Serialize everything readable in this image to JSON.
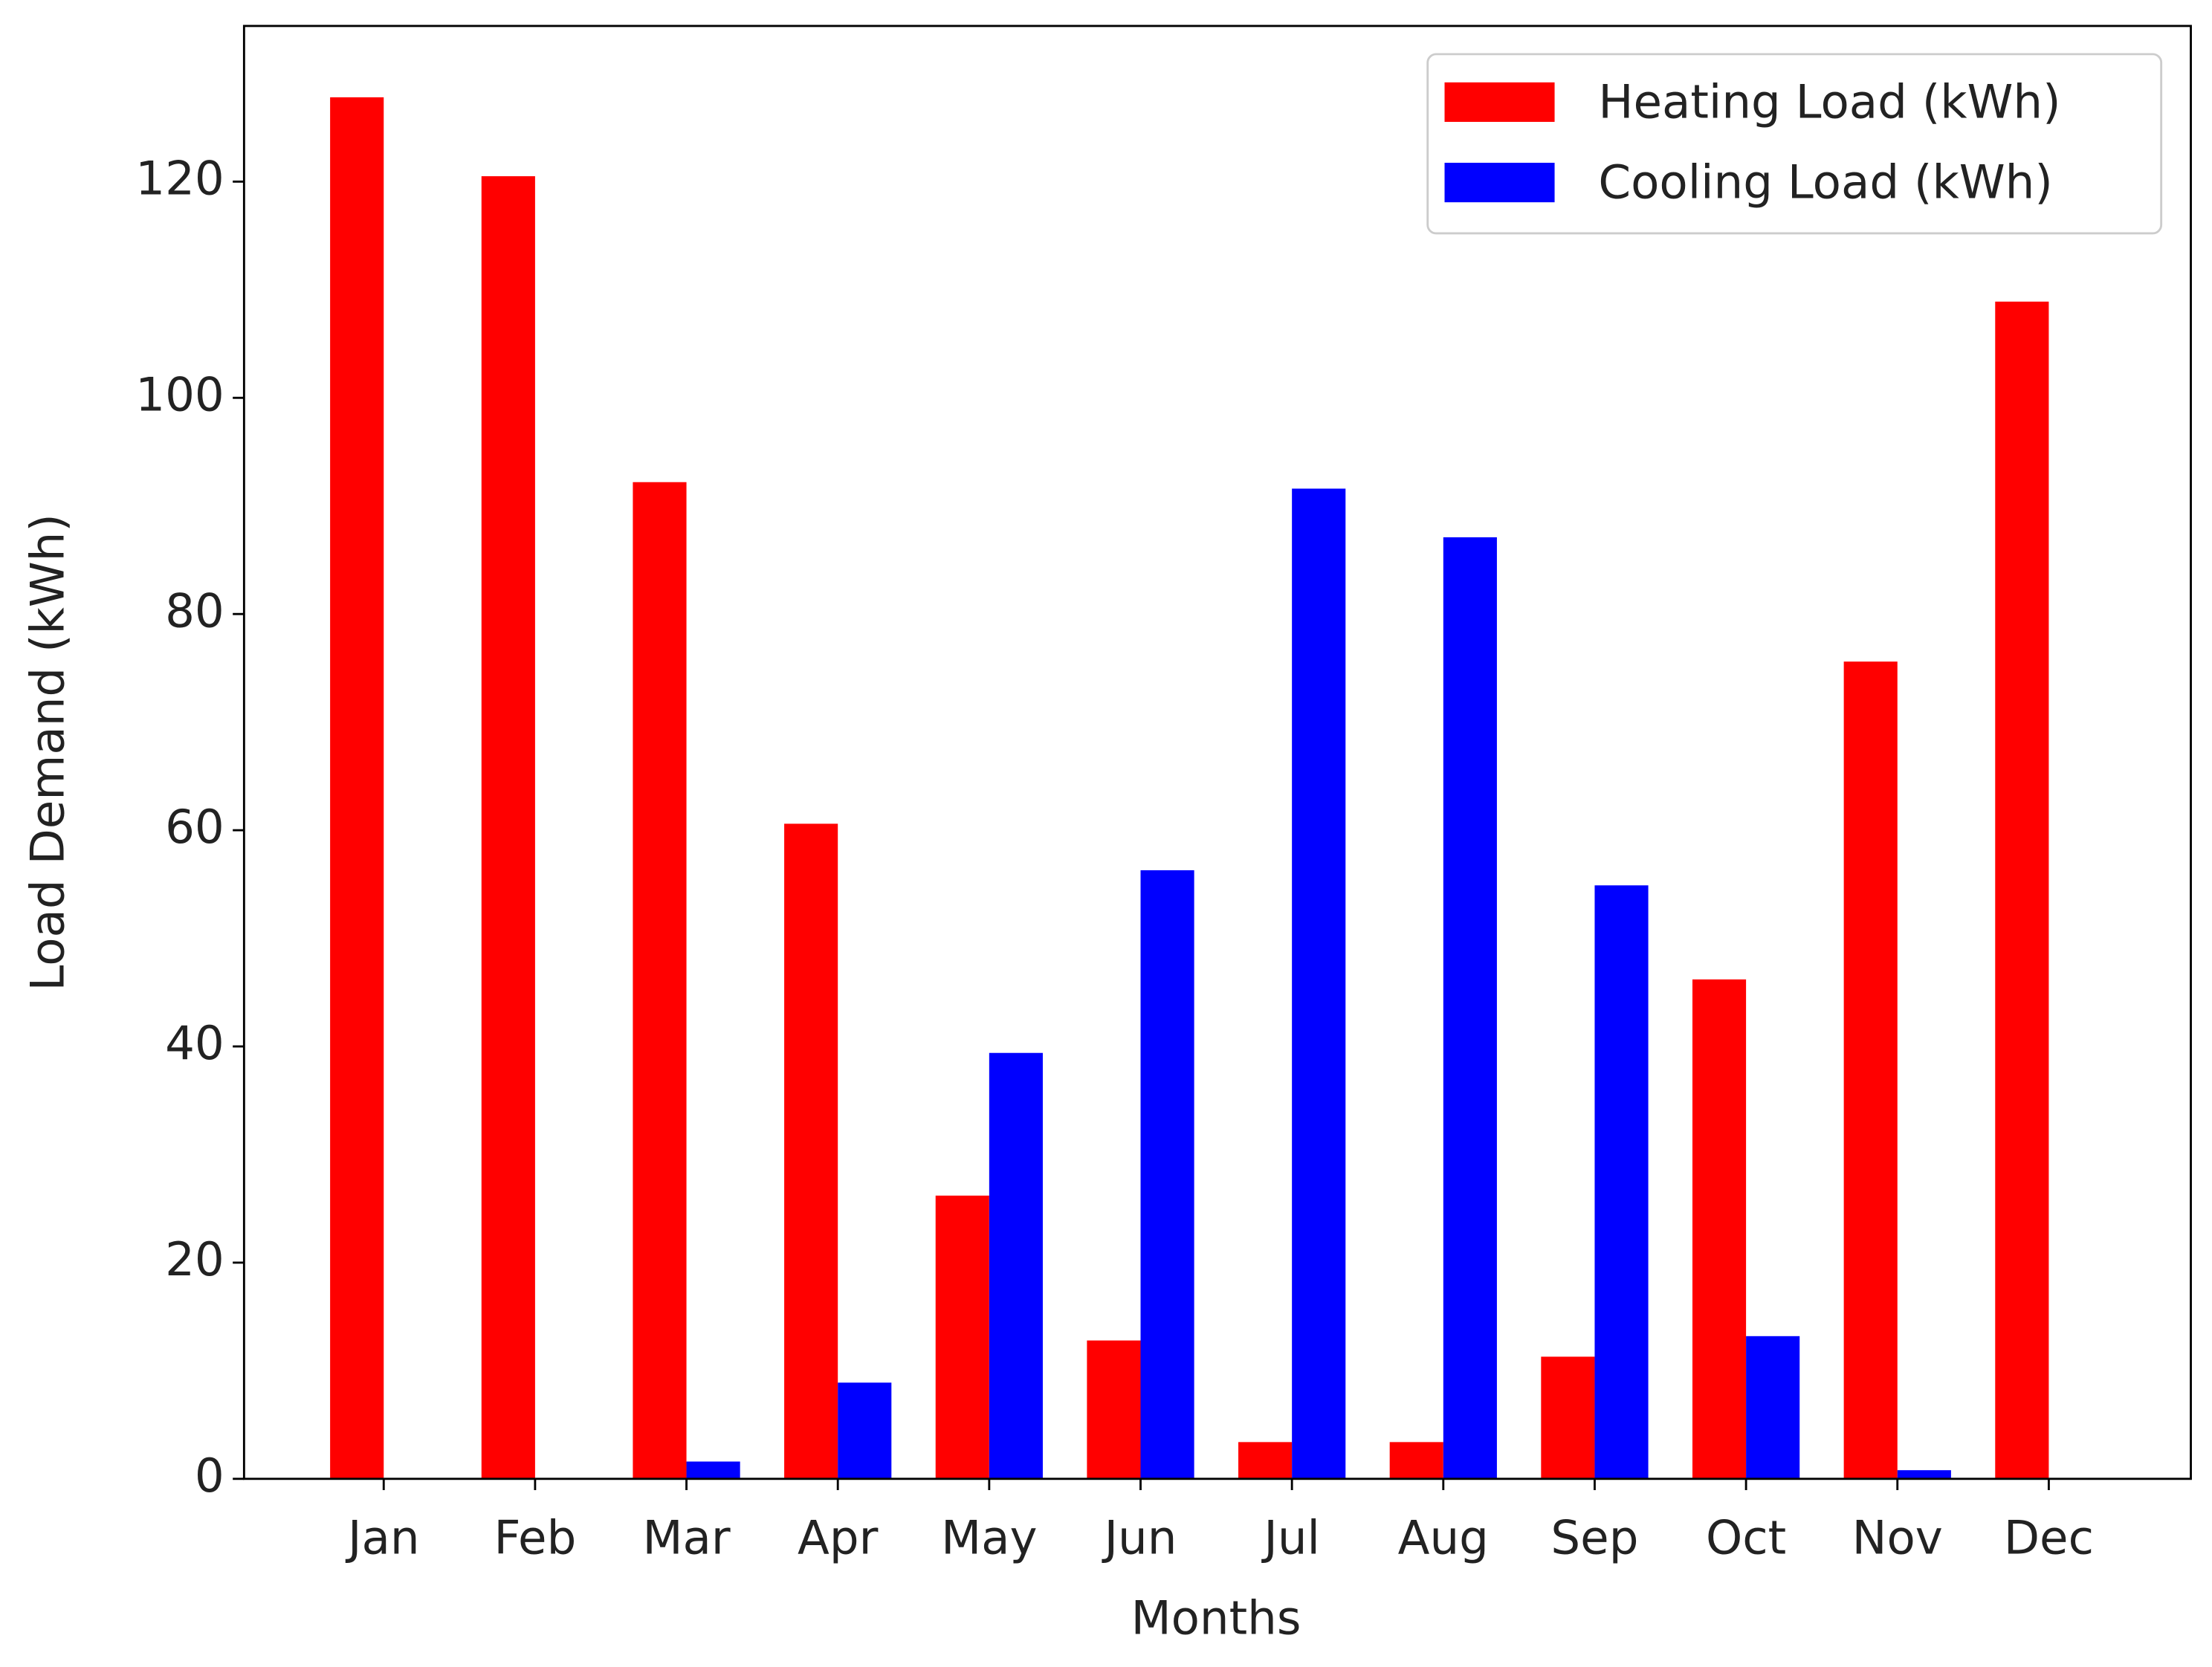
{
  "chart_data": {
    "type": "bar",
    "xlabel": "Months",
    "ylabel": "Load Demand (kWh)",
    "categories": [
      "Jan",
      "Feb",
      "Mar",
      "Apr",
      "May",
      "Jun",
      "Jul",
      "Aug",
      "Sep",
      "Oct",
      "Nov",
      "Dec"
    ],
    "series": [
      {
        "name": "Heating Load (kWh)",
        "color": "#ff0000",
        "values": [
          127.8,
          120.5,
          92.2,
          60.6,
          26.2,
          12.8,
          3.4,
          3.4,
          11.3,
          46.2,
          75.6,
          108.9
        ]
      },
      {
        "name": "Cooling Load (kWh)",
        "color": "#0000ff",
        "values": [
          0,
          0,
          1.6,
          8.9,
          39.4,
          56.3,
          91.6,
          87.1,
          54.9,
          13.2,
          0.8,
          0
        ]
      }
    ],
    "ylim": [
      0,
      134.4
    ],
    "yticks": [
      0,
      20,
      40,
      60,
      80,
      100,
      120
    ],
    "legend": "upper right",
    "grid": false
  }
}
